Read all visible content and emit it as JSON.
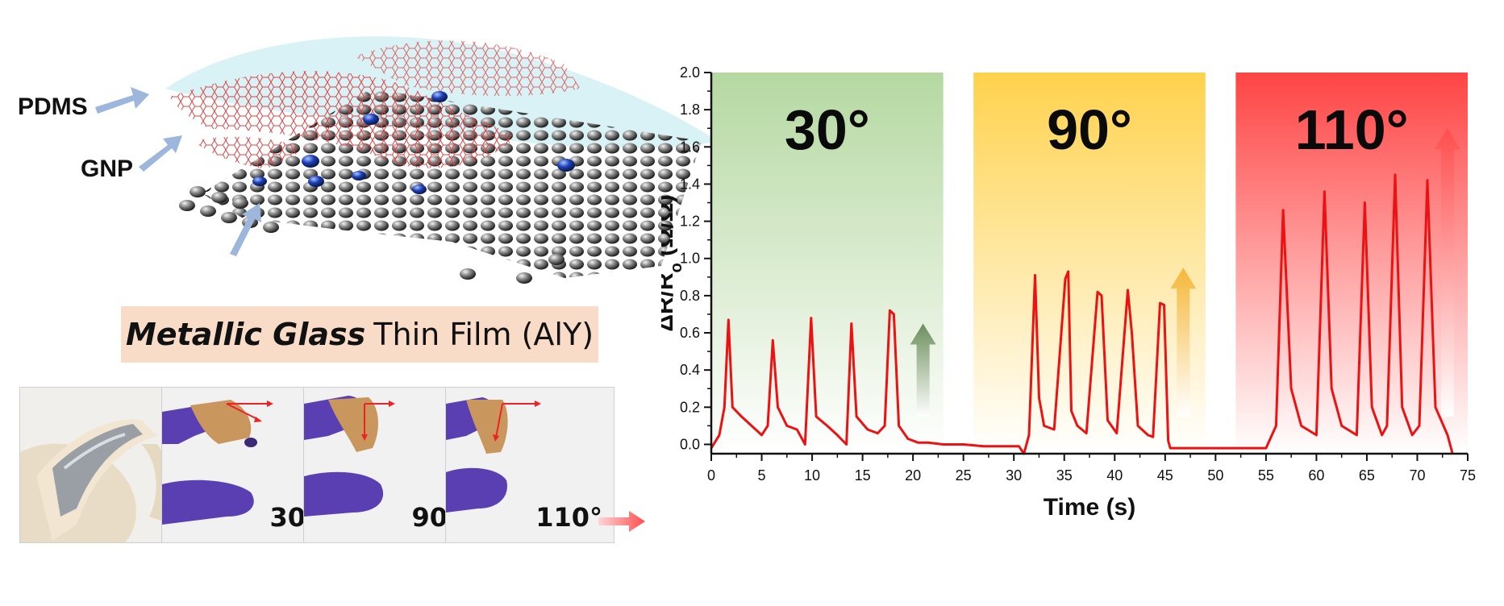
{
  "schematic": {
    "labels": {
      "pdms": "PDMS",
      "gnp": "GNP"
    },
    "film_label_italic": "Metallic Glass",
    "film_label_rest": "Thin Film (AlY)"
  },
  "photos": [
    {
      "angle": ""
    },
    {
      "angle": "30°"
    },
    {
      "angle": "90°"
    },
    {
      "angle": "110°"
    }
  ],
  "colors": {
    "trace": "#ee1111",
    "zone_30": "#bcdcaa",
    "zone_90": "#ffd65a",
    "zone_110": "#ff4d4d",
    "arrow_blue": "#9cb6dc"
  },
  "chart_data": {
    "type": "line",
    "title": "",
    "xlabel": "Time (s)",
    "ylabel": "ΔR/Ro (Ω/Ω)",
    "ylabel_main": "ΔR/R",
    "ylabel_sub": "o",
    "ylabel_unit": " (Ω/Ω)",
    "xlim": [
      0,
      75
    ],
    "ylim": [
      -0.05,
      2.0
    ],
    "xticks": [
      "0",
      "5",
      "10",
      "15",
      "20",
      "25",
      "30",
      "35",
      "40",
      "45",
      "50",
      "55",
      "60",
      "65",
      "70",
      "75"
    ],
    "yticks": [
      "0.0",
      "0.2",
      "0.4",
      "0.6",
      "0.8",
      "1.0",
      "1.2",
      "1.4",
      "1.6",
      "1.8",
      "2.0"
    ],
    "grid": false,
    "zones": [
      {
        "label": "30°",
        "x_start": 0,
        "x_end": 23
      },
      {
        "label": "90°",
        "x_start": 26,
        "x_end": 49
      },
      {
        "label": "110°",
        "x_start": 52,
        "x_end": 75
      }
    ],
    "series": [
      {
        "x": [
          0,
          0.8,
          1.3,
          1.7,
          2.1,
          3,
          4,
          5,
          5.6,
          6.1,
          6.6,
          7.5,
          8.5,
          9.3,
          9.9,
          10.4,
          11.5,
          12.5,
          13.4,
          13.9,
          14.4,
          15.5,
          16.5,
          17.2,
          17.7,
          18.1,
          18.6,
          19.5,
          20.5,
          21.5,
          23,
          25,
          27,
          29,
          30.5,
          31,
          31.5,
          32.1,
          32.5,
          33,
          34,
          35.1,
          35.4,
          35.7,
          36.3,
          37.2,
          38.3,
          38.7,
          39.3,
          40.2,
          41.3,
          41.7,
          42.3,
          43.3,
          43.8,
          44.5,
          44.9,
          45.3,
          45.5,
          46.5,
          50,
          55,
          56,
          56.7,
          57.5,
          58.5,
          60,
          60.8,
          61.5,
          62.5,
          64,
          64.8,
          65.5,
          66.5,
          67,
          67.8,
          68.5,
          69.5,
          70.2,
          71,
          71.8,
          73,
          73.5
        ],
        "y": [
          -0.02,
          0.05,
          0.2,
          0.67,
          0.2,
          0.15,
          0.1,
          0.05,
          0.1,
          0.56,
          0.2,
          0.1,
          0.08,
          0.0,
          0.68,
          0.15,
          0.1,
          0.05,
          0.0,
          0.65,
          0.15,
          0.08,
          0.06,
          0.1,
          0.72,
          0.7,
          0.1,
          0.03,
          0.01,
          0.01,
          0.0,
          0.0,
          -0.01,
          -0.01,
          -0.01,
          -0.05,
          0.05,
          0.91,
          0.25,
          0.1,
          0.08,
          0.89,
          0.93,
          0.18,
          0.1,
          0.06,
          0.82,
          0.8,
          0.13,
          0.06,
          0.83,
          0.6,
          0.1,
          0.05,
          0.04,
          0.76,
          0.75,
          0.02,
          -0.02,
          -0.02,
          -0.02,
          -0.02,
          0.1,
          1.26,
          0.3,
          0.1,
          0.05,
          1.36,
          0.3,
          0.1,
          0.05,
          1.3,
          0.2,
          0.05,
          0.1,
          1.45,
          0.2,
          0.05,
          0.1,
          1.42,
          0.2,
          0.05,
          -0.05
        ]
      }
    ]
  }
}
